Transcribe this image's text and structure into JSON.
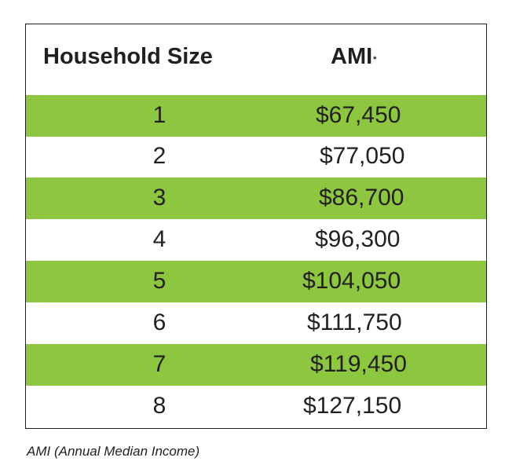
{
  "table": {
    "headers": {
      "household_size": "Household Size",
      "ami": "AMI",
      "ami_marker": "*"
    },
    "rows": [
      {
        "size": "1",
        "ami": "$67,450",
        "highlight": true
      },
      {
        "size": "2",
        "ami": "$77,050",
        "highlight": false
      },
      {
        "size": "3",
        "ami": "$86,700",
        "highlight": true
      },
      {
        "size": "4",
        "ami": "$96,300",
        "highlight": false
      },
      {
        "size": "5",
        "ami": "$104,050",
        "highlight": true
      },
      {
        "size": "6",
        "ami": "$111,750",
        "highlight": false
      },
      {
        "size": "7",
        "ami": "$119,450",
        "highlight": true
      },
      {
        "size": "8",
        "ami": "$127,150",
        "highlight": false
      }
    ]
  },
  "footnote": "AMI (Annual Median Income)",
  "colors": {
    "row_highlight": "#8dc63f",
    "text": "#231f20",
    "border": "#231f20"
  }
}
